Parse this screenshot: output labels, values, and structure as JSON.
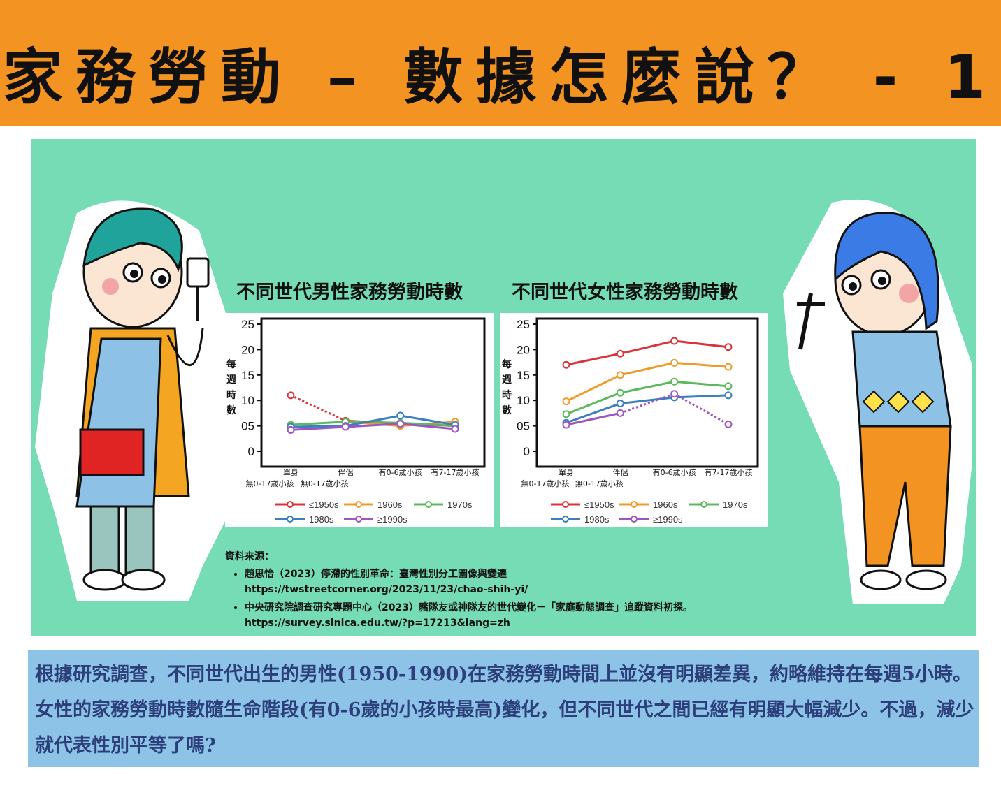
{
  "header": {
    "title": "家務勞動 – 數據怎麼說？ - 1"
  },
  "charts": [
    {
      "title": "不同世代男性家務勞動時數",
      "ylabel": "每\n週\n時\n數",
      "yticks": [
        "25",
        "20",
        "15",
        "10",
        "05",
        "0"
      ],
      "categories": [
        [
          "單身",
          "無0-17歲小孩"
        ],
        [
          "伴侶",
          "無0-17歲小孩"
        ],
        [
          "有0-6歲小孩",
          ""
        ],
        [
          "有7-17歲小孩",
          ""
        ]
      ]
    },
    {
      "title": "不同世代女性家務勞動時數",
      "ylabel": "每\n週\n時\n數",
      "yticks": [
        "25",
        "20",
        "15",
        "10",
        "05",
        "0"
      ],
      "categories": [
        [
          "單身",
          "無0-17歲小孩"
        ],
        [
          "伴侶",
          "無0-17歲小孩"
        ],
        [
          "有0-6歲小孩",
          ""
        ],
        [
          "有7-17歲小孩",
          ""
        ]
      ]
    }
  ],
  "chart_data": [
    {
      "type": "line",
      "title": "不同世代男性家務勞動時數",
      "ylabel": "每週時數",
      "categories": [
        "單身 無0-17歲小孩",
        "伴侶 無0-17歲小孩",
        "有0-6歲小孩",
        "有7-17歲小孩"
      ],
      "ylim": [
        0,
        25
      ],
      "grid": false,
      "legend": "bottom",
      "series": [
        {
          "name": "≤1950s",
          "color": "#d9343b",
          "dashed_first_segment": true,
          "values": [
            11,
            6,
            5.5,
            5
          ]
        },
        {
          "name": "1960s",
          "color": "#f09a2b",
          "values": [
            null,
            5.8,
            5,
            5.8
          ]
        },
        {
          "name": "1970s",
          "color": "#5cb85c",
          "values": [
            5.2,
            5.8,
            5.6,
            5
          ]
        },
        {
          "name": "1980s",
          "color": "#3a7fbf",
          "values": [
            4.8,
            5,
            7,
            5.2
          ]
        },
        {
          "name": "≥1990s",
          "color": "#a054c4",
          "values": [
            4.2,
            4.8,
            5.4,
            4.4
          ]
        }
      ]
    },
    {
      "type": "line",
      "title": "不同世代女性家務勞動時數",
      "ylabel": "每週時數",
      "categories": [
        "單身 無0-17歲小孩",
        "伴侶 無0-17歲小孩",
        "有0-6歲小孩",
        "有7-17歲小孩"
      ],
      "ylim": [
        0,
        25
      ],
      "grid": false,
      "legend": "bottom",
      "series": [
        {
          "name": "≤1950s",
          "color": "#d9343b",
          "values": [
            17,
            19.2,
            21.7,
            20.5
          ]
        },
        {
          "name": "1960s",
          "color": "#f09a2b",
          "values": [
            9.8,
            15,
            17.4,
            16.6
          ]
        },
        {
          "name": "1970s",
          "color": "#5cb85c",
          "values": [
            7.3,
            11.5,
            13.7,
            12.8
          ]
        },
        {
          "name": "1980s",
          "color": "#3a7fbf",
          "values": [
            5.6,
            9.4,
            10.6,
            11
          ]
        },
        {
          "name": "≥1990s",
          "color": "#a054c4",
          "dashed_segments": [
            1,
            2
          ],
          "values": [
            5.2,
            7.5,
            11.3,
            5.3
          ]
        }
      ]
    }
  ],
  "sources": {
    "label": "資料來源：",
    "items": [
      {
        "text": "趙思怡（2023）停滯的性別革命：臺灣性別分工圖像與變遷",
        "url": "https://twstreetcorner.org/2023/11/23/chao-shih-yi/"
      },
      {
        "text": "中央研究院調查研究專題中心（2023）豬隊友或神隊友的世代變化－「家庭動態調查」追蹤資料初探。",
        "url": "https://survey.sinica.edu.tw/?p=17213&lang=zh"
      }
    ]
  },
  "summary": {
    "text": "根據研究調查，不同世代出生的男性(1950-1990)在家務勞動時間上並沒有明顯差異，約略維持在每週5小時。女性的家務勞動時數隨生命階段(有0-6歲的小孩時最高)變化，但不同世代之間已經有明顯大幅減少。不過，減少就代表性別平等了嗎?"
  }
}
